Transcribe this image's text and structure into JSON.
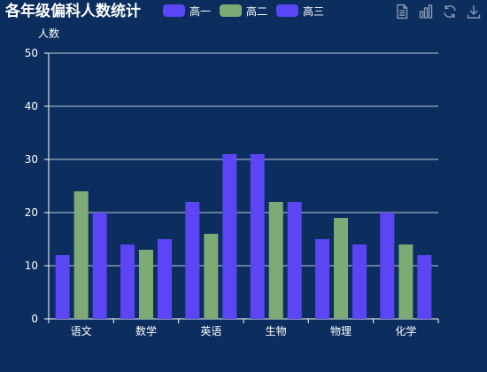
{
  "chart_data": {
    "type": "bar",
    "title": "各年级偏科人数统计",
    "ylabel": "人数",
    "xlabel": "",
    "categories": [
      "语文",
      "数学",
      "英语",
      "生物",
      "物理",
      "化学"
    ],
    "series": [
      {
        "name": "高一",
        "color": "#5b45f5",
        "values": [
          12,
          14,
          22,
          31,
          15,
          20
        ]
      },
      {
        "name": "高二",
        "color": "#7eaa76",
        "values": [
          24,
          13,
          16,
          22,
          19,
          14
        ]
      },
      {
        "name": "高三",
        "color": "#5b45f5",
        "values": [
          20,
          15,
          31,
          22,
          14,
          12
        ]
      }
    ],
    "ylim": [
      0,
      50
    ],
    "yticks": [
      0,
      10,
      20,
      30,
      40,
      50
    ],
    "grid": true,
    "legend_position": "top-center"
  },
  "colors": {
    "background": "#0b2e5e",
    "axis": "#ffffff",
    "toolbox_icon": "#8a98ad"
  },
  "toolbox": [
    {
      "icon": "data-view-icon"
    },
    {
      "icon": "bar-chart-icon"
    },
    {
      "icon": "restore-icon"
    },
    {
      "icon": "download-icon"
    }
  ]
}
